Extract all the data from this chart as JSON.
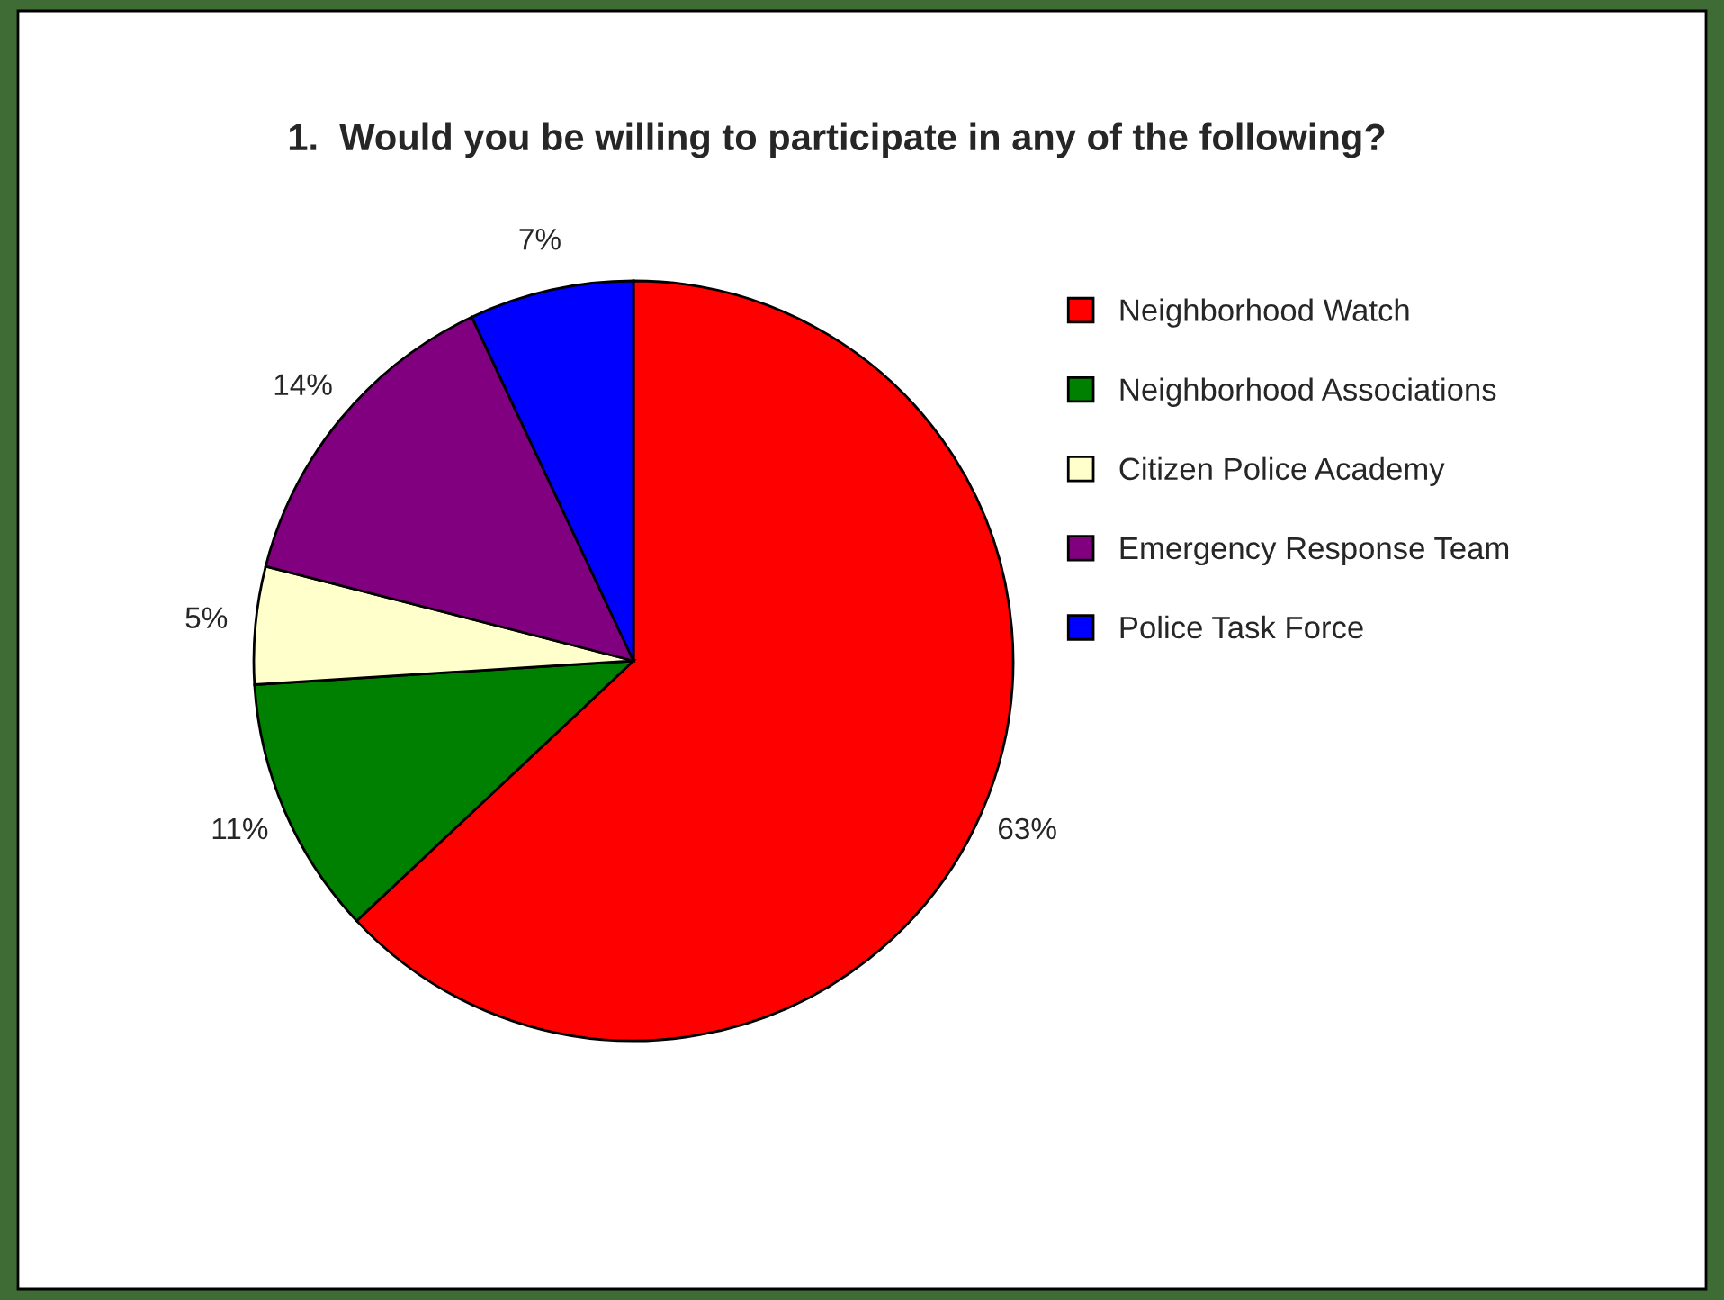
{
  "chart_data": {
    "type": "pie",
    "title": "1.  Would you be willing to participate in any of the following?",
    "categories": [
      "Neighborhood Watch",
      "Neighborhood Associations",
      "Citizen Police Academy",
      "Emergency Response Team",
      "Police Task Force"
    ],
    "values": [
      63,
      11,
      5,
      14,
      7
    ],
    "colors": [
      "#ff0000",
      "#008000",
      "#ffffcc",
      "#800080",
      "#0000ff"
    ],
    "value_labels": [
      "63%",
      "11%",
      "5%",
      "14%",
      "7%"
    ],
    "legend": "right"
  }
}
